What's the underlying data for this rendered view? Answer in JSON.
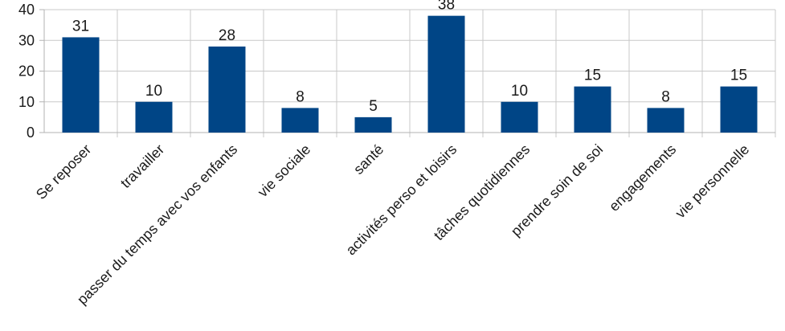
{
  "chart_data": {
    "type": "bar",
    "title": "",
    "xlabel": "",
    "ylabel": "",
    "categories": [
      "Se reposer",
      "travailler",
      "passer du temps avec vos enfants",
      "vie sociale",
      "santé",
      "activités perso et loisirs",
      "tâches quotidiennes",
      "prendre soin de soi",
      "engagements",
      "vie personnelle"
    ],
    "values": [
      31,
      10,
      28,
      8,
      5,
      38,
      10,
      15,
      8,
      15
    ],
    "ylim": [
      0,
      40
    ],
    "yticks": [
      0,
      10,
      20,
      30,
      40
    ],
    "grid": true,
    "legend": "none",
    "bar_color": "#004586"
  }
}
